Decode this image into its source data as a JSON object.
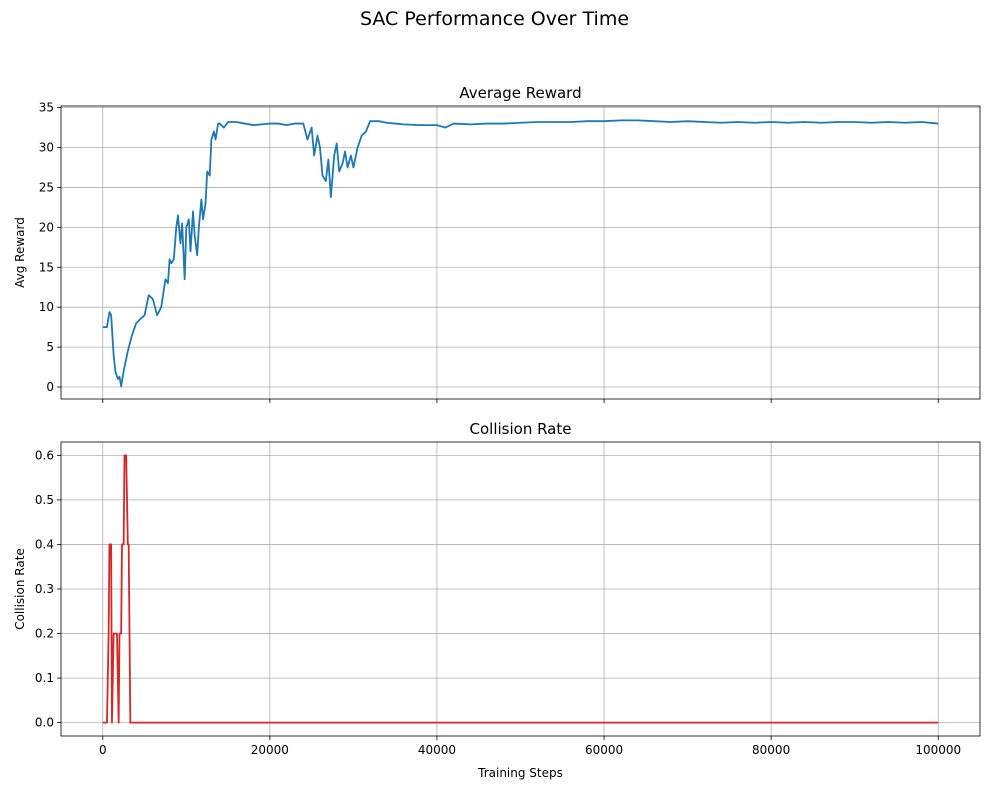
{
  "suptitle": "SAC Performance Over Time",
  "chart_data": [
    {
      "type": "line",
      "title": "Average Reward",
      "xlabel": "",
      "ylabel": "Avg Reward",
      "xlim": [
        -5000,
        105000
      ],
      "ylim": [
        -1.5,
        35.2
      ],
      "xticks": [
        0,
        20000,
        40000,
        60000,
        80000,
        100000
      ],
      "yticks": [
        0,
        5,
        10,
        15,
        20,
        25,
        30,
        35
      ],
      "xtick_labels_visible": false,
      "grid": true,
      "color": "#1f77b4",
      "series": [
        {
          "x": [
            0,
            500,
            800,
            1000,
            1300,
            1500,
            1800,
            2000,
            2200,
            2500,
            3000,
            3500,
            4000,
            4500,
            5000,
            5500,
            6000,
            6500,
            7000,
            7500,
            7800,
            8000,
            8200,
            8500,
            8800,
            9000,
            9300,
            9500,
            9800,
            10000,
            10300,
            10500,
            10800,
            11000,
            11300,
            11500,
            11800,
            12000,
            12300,
            12500,
            12800,
            13000,
            13300,
            13500,
            13800,
            14000,
            14500,
            15000,
            16000,
            17000,
            18000,
            19000,
            20000,
            21000,
            22000,
            23000,
            24000,
            24500,
            25000,
            25300,
            25700,
            26000,
            26300,
            26700,
            27000,
            27300,
            27700,
            28000,
            28300,
            28700,
            29000,
            29300,
            29700,
            30000,
            30500,
            31000,
            31500,
            32000,
            33000,
            34000,
            35000,
            36000,
            38000,
            40000,
            41000,
            42000,
            44000,
            46000,
            48000,
            50000,
            52000,
            54000,
            56000,
            58000,
            60000,
            62000,
            64000,
            66000,
            68000,
            70000,
            72000,
            74000,
            76000,
            78000,
            80000,
            82000,
            84000,
            86000,
            88000,
            90000,
            92000,
            94000,
            96000,
            98000,
            100000
          ],
          "y": [
            7.5,
            7.5,
            9.4,
            9.0,
            4.0,
            2.0,
            1.0,
            1.3,
            0.1,
            2.0,
            4.5,
            6.5,
            8.0,
            8.5,
            9.0,
            11.5,
            11.0,
            9.0,
            10.0,
            13.5,
            13.0,
            16.0,
            15.5,
            16.0,
            20.0,
            21.5,
            18.0,
            20.5,
            13.5,
            20.0,
            21.0,
            17.0,
            22.0,
            19.0,
            16.5,
            20.0,
            23.5,
            21.0,
            23.0,
            27.0,
            26.5,
            31.0,
            32.0,
            31.0,
            33.0,
            33.0,
            32.5,
            33.2,
            33.2,
            33.0,
            32.8,
            32.9,
            33.0,
            33.0,
            32.8,
            33.0,
            33.0,
            31.0,
            32.5,
            29.0,
            31.5,
            30.0,
            26.5,
            25.8,
            28.5,
            23.8,
            29.0,
            30.5,
            27.0,
            28.0,
            29.5,
            27.5,
            29.0,
            27.5,
            30.0,
            31.5,
            32.0,
            33.3,
            33.3,
            33.1,
            33.0,
            32.9,
            32.8,
            32.8,
            32.5,
            33.0,
            32.9,
            33.0,
            33.0,
            33.1,
            33.2,
            33.2,
            33.2,
            33.3,
            33.3,
            33.4,
            33.4,
            33.3,
            33.2,
            33.3,
            33.2,
            33.1,
            33.2,
            33.1,
            33.2,
            33.1,
            33.2,
            33.1,
            33.2,
            33.2,
            33.1,
            33.2,
            33.1,
            33.2,
            33.0
          ]
        }
      ]
    },
    {
      "type": "line",
      "title": "Collision Rate",
      "xlabel": "Training Steps",
      "ylabel": "Collision Rate",
      "xlim": [
        -5000,
        105000
      ],
      "ylim": [
        -0.03,
        0.63
      ],
      "xticks": [
        0,
        20000,
        40000,
        60000,
        80000,
        100000
      ],
      "xtick_labels": [
        "0",
        "20000",
        "40000",
        "60000",
        "80000",
        "100000"
      ],
      "yticks": [
        0.0,
        0.1,
        0.2,
        0.3,
        0.4,
        0.5,
        0.6
      ],
      "ytick_labels": [
        "0.0",
        "0.1",
        "0.2",
        "0.3",
        "0.4",
        "0.5",
        "0.6"
      ],
      "xtick_labels_visible": true,
      "grid": true,
      "color": "#d62728",
      "series": [
        {
          "x": [
            0,
            500,
            700,
            800,
            1000,
            1100,
            1300,
            1500,
            1700,
            1900,
            2000,
            2200,
            2300,
            2500,
            2600,
            2800,
            3000,
            3100,
            3300,
            4000,
            100000
          ],
          "y": [
            0,
            0,
            0.2,
            0.4,
            0.4,
            0,
            0.2,
            0.2,
            0.2,
            0,
            0.2,
            0.2,
            0.4,
            0.4,
            0.6,
            0.6,
            0.4,
            0.4,
            0,
            0,
            0
          ]
        }
      ]
    }
  ]
}
